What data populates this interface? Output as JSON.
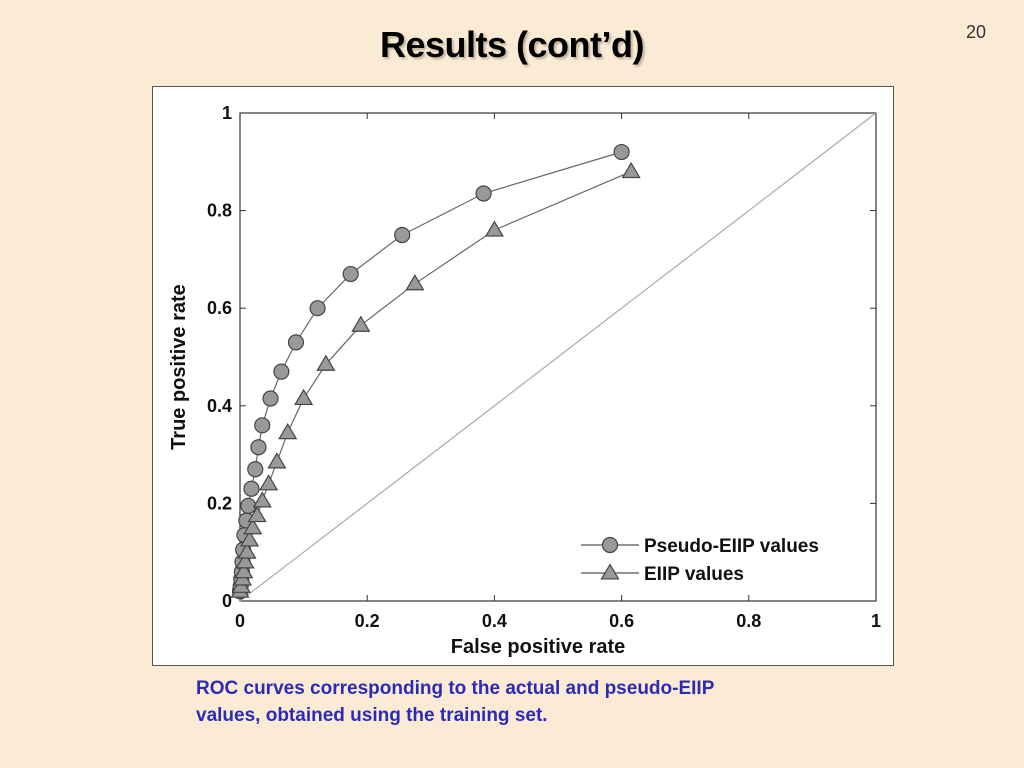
{
  "slide": {
    "title": "Results (cont’d)",
    "page_number": "20",
    "caption_lines": [
      "ROC curves corresponding to the actual and pseudo-EIIP",
      "values, obtained using the training set."
    ]
  },
  "chart_data": {
    "type": "line",
    "title": "",
    "xlabel": "False positive rate",
    "ylabel": "True positive rate",
    "xlim": [
      0,
      1
    ],
    "ylim": [
      0,
      1
    ],
    "xticks": [
      "0",
      "0.2",
      "0.4",
      "0.6",
      "0.8",
      "1"
    ],
    "yticks": [
      "0",
      "0.2",
      "0.4",
      "0.6",
      "0.8",
      "1"
    ],
    "grid": false,
    "legend_position": "bottom-right",
    "diagonal_reference": true,
    "series": [
      {
        "name": "Pseudo-EIIP values",
        "marker": "circle",
        "color": "#999999",
        "x": [
          0.0,
          0.001,
          0.002,
          0.003,
          0.004,
          0.005,
          0.007,
          0.01,
          0.013,
          0.018,
          0.024,
          0.029,
          0.035,
          0.048,
          0.065,
          0.088,
          0.122,
          0.174,
          0.255,
          0.383,
          0.6
        ],
        "y": [
          0.02,
          0.03,
          0.045,
          0.06,
          0.08,
          0.105,
          0.135,
          0.165,
          0.195,
          0.23,
          0.27,
          0.315,
          0.36,
          0.415,
          0.47,
          0.53,
          0.6,
          0.67,
          0.75,
          0.835,
          0.92
        ]
      },
      {
        "name": "EIIP values",
        "marker": "triangle",
        "color": "#999999",
        "x": [
          0.0,
          0.002,
          0.004,
          0.006,
          0.008,
          0.011,
          0.015,
          0.02,
          0.027,
          0.035,
          0.045,
          0.058,
          0.075,
          0.1,
          0.135,
          0.19,
          0.275,
          0.4,
          0.615
        ],
        "y": [
          0.02,
          0.03,
          0.045,
          0.06,
          0.08,
          0.1,
          0.125,
          0.15,
          0.175,
          0.205,
          0.24,
          0.285,
          0.345,
          0.415,
          0.485,
          0.565,
          0.65,
          0.76,
          0.88
        ]
      }
    ]
  }
}
